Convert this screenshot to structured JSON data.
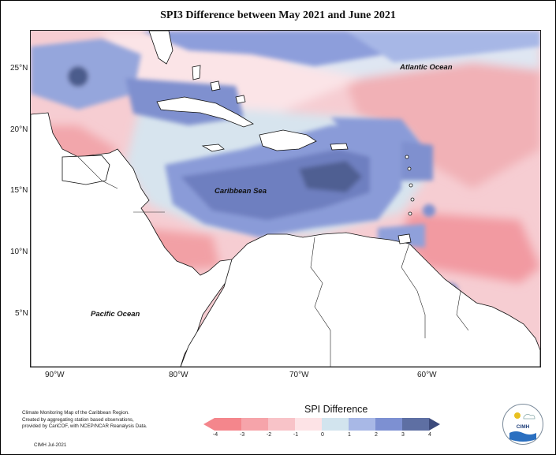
{
  "title": "SPI3 Difference between May 2021 and June 2021",
  "map_labels": {
    "atlantic": "Atlantic Ocean",
    "caribbean": "Caribbean Sea",
    "pacific": "Pacific Ocean"
  },
  "lat_labels": [
    "25°N",
    "20°N",
    "15°N",
    "10°N",
    "5°N"
  ],
  "lon_labels": [
    "90°W",
    "80°W",
    "70°W",
    "60°W"
  ],
  "legend": {
    "title": "SPI Difference",
    "ticks": [
      "-4",
      "-3",
      "-2",
      "-1",
      "0",
      "1",
      "2",
      "3",
      "4"
    ],
    "colors": [
      "#f4868c",
      "#f6a4aa",
      "#f8c3c8",
      "#fde3e6",
      "#d2e4ee",
      "#a8b8e6",
      "#7d90d2",
      "#5e6fa3",
      "#3c4a7c"
    ]
  },
  "footer": {
    "line1": "Climate Monitoring Map of the Caribbean Region.",
    "line2": "Created by aggregating station based observations,",
    "line3": "provided by CariCOF, with NCEP/NCAR Reanalysis Data.",
    "stamp": "CIMH  Jul-2021"
  },
  "logo_text": "CIMH"
}
